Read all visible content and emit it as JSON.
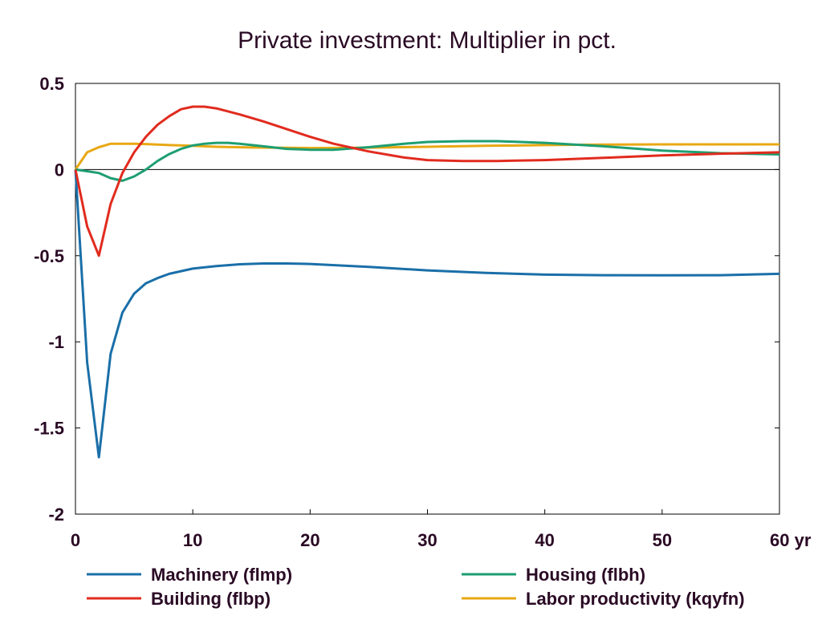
{
  "chart_data": {
    "type": "line",
    "title": "Private investment: Multiplier in pct.",
    "x_unit_label": "yr",
    "xlim": [
      0,
      60
    ],
    "ylim": [
      -2,
      0.5
    ],
    "x_ticks": [
      0,
      10,
      20,
      30,
      40,
      50,
      60
    ],
    "x_tick_labels": [
      "0",
      "10",
      "20",
      "30",
      "40",
      "50",
      "60 yr"
    ],
    "y_ticks": [
      0.5,
      0,
      -0.5,
      -1,
      -1.5,
      -2
    ],
    "y_tick_labels": [
      "0.5",
      "0",
      "-0.5",
      "-1",
      "-1.5",
      "-2"
    ],
    "grid": false,
    "legend_position": "bottom",
    "series": [
      {
        "name": "Machinery (flmp)",
        "color": "#1a6fa8",
        "x": [
          0,
          1,
          2,
          3,
          4,
          5,
          6,
          7,
          8,
          9,
          10,
          12,
          14,
          16,
          18,
          20,
          25,
          30,
          35,
          40,
          45,
          50,
          55,
          60
        ],
        "y": [
          0,
          -1.12,
          -1.67,
          -1.07,
          -0.83,
          -0.72,
          -0.66,
          -0.63,
          -0.605,
          -0.59,
          -0.575,
          -0.56,
          -0.55,
          -0.545,
          -0.545,
          -0.548,
          -0.565,
          -0.585,
          -0.6,
          -0.61,
          -0.613,
          -0.614,
          -0.613,
          -0.605
        ]
      },
      {
        "name": "Building (flbp)",
        "color": "#e12b1e",
        "x": [
          0,
          1,
          2,
          3,
          4,
          5,
          6,
          7,
          8,
          9,
          10,
          11,
          12,
          14,
          16,
          18,
          20,
          22,
          25,
          28,
          30,
          33,
          36,
          40,
          45,
          50,
          55,
          60
        ],
        "y": [
          0,
          -0.33,
          -0.5,
          -0.2,
          -0.02,
          0.1,
          0.19,
          0.26,
          0.31,
          0.35,
          0.365,
          0.365,
          0.355,
          0.32,
          0.28,
          0.235,
          0.19,
          0.15,
          0.105,
          0.07,
          0.055,
          0.05,
          0.05,
          0.055,
          0.068,
          0.082,
          0.092,
          0.1
        ]
      },
      {
        "name": "Housing (flbh)",
        "color": "#1e9e72",
        "x": [
          0,
          1,
          2,
          3,
          4,
          5,
          6,
          7,
          8,
          9,
          10,
          11,
          12,
          13,
          14,
          16,
          18,
          20,
          22,
          25,
          28,
          30,
          33,
          36,
          40,
          45,
          50,
          55,
          60
        ],
        "y": [
          0,
          -0.01,
          -0.02,
          -0.05,
          -0.065,
          -0.04,
          0.0,
          0.05,
          0.09,
          0.12,
          0.14,
          0.15,
          0.155,
          0.155,
          0.15,
          0.135,
          0.12,
          0.115,
          0.115,
          0.13,
          0.15,
          0.16,
          0.165,
          0.165,
          0.155,
          0.135,
          0.11,
          0.095,
          0.088
        ]
      },
      {
        "name": "Labor productivity (kqyfn)",
        "color": "#e8a813",
        "x": [
          0,
          1,
          2,
          3,
          4,
          5,
          6,
          8,
          10,
          12,
          15,
          20,
          25,
          30,
          35,
          40,
          45,
          50,
          55,
          60
        ],
        "y": [
          0,
          0.1,
          0.13,
          0.15,
          0.15,
          0.15,
          0.148,
          0.142,
          0.138,
          0.132,
          0.128,
          0.125,
          0.127,
          0.132,
          0.138,
          0.142,
          0.145,
          0.146,
          0.146,
          0.146
        ]
      }
    ]
  }
}
